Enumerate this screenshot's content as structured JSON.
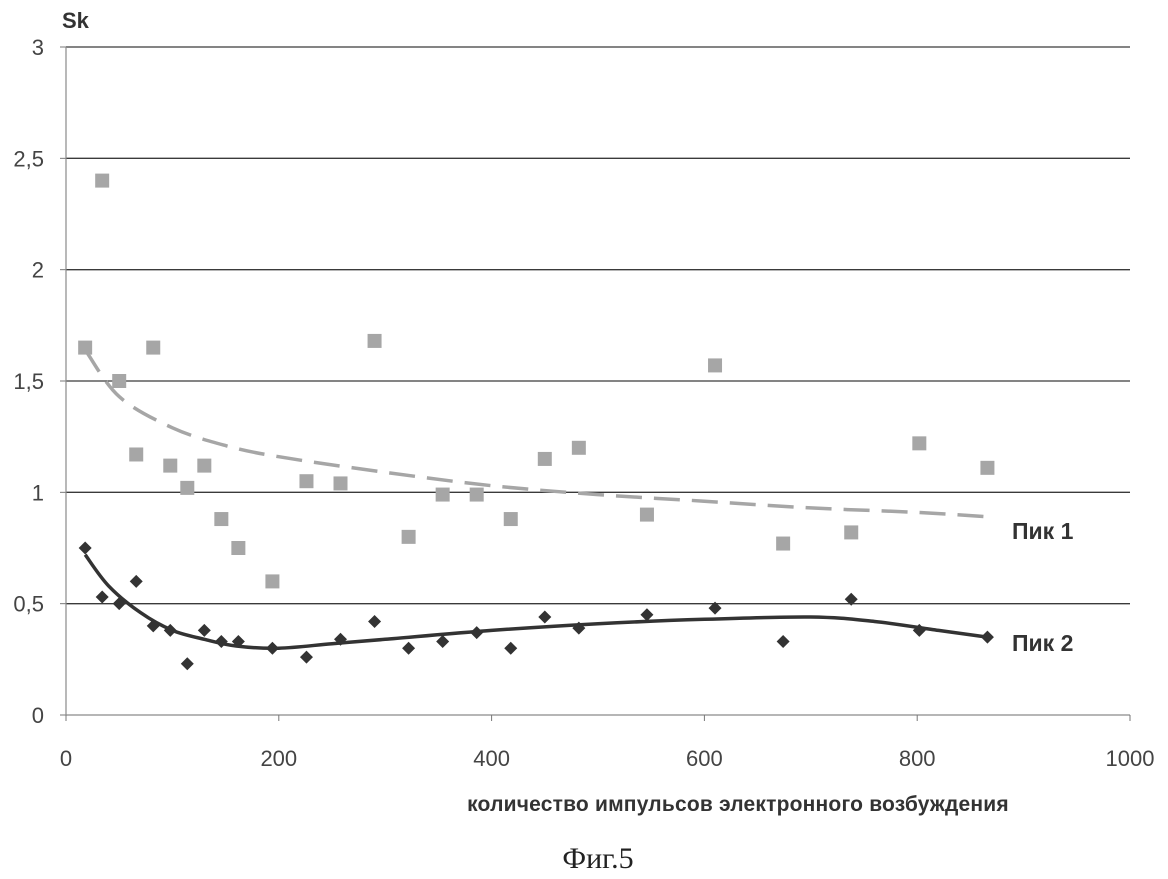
{
  "chart_data": {
    "type": "scatter",
    "ylabel": "Sk",
    "xlabel": "количество импульсов электронного возбуждения",
    "caption": "Фиг.5",
    "xlim": [
      0,
      1000
    ],
    "ylim": [
      0,
      3
    ],
    "x_ticks": [
      "0",
      "200",
      "400",
      "600",
      "800",
      "1000"
    ],
    "y_ticks": [
      "0",
      "0,5",
      "1",
      "1,5",
      "2",
      "2,5",
      "3"
    ],
    "grid": "horizontal",
    "series": [
      {
        "name": "Пик 1",
        "marker": "square",
        "color": "#a6a6a6",
        "trendline": "dashed",
        "trend_color": "#a6a6a6",
        "points": [
          [
            18,
            1.65
          ],
          [
            34,
            2.4
          ],
          [
            50,
            1.5
          ],
          [
            66,
            1.17
          ],
          [
            82,
            1.65
          ],
          [
            98,
            1.12
          ],
          [
            114,
            1.02
          ],
          [
            130,
            1.12
          ],
          [
            146,
            0.88
          ],
          [
            162,
            0.75
          ],
          [
            194,
            0.6
          ],
          [
            226,
            1.05
          ],
          [
            258,
            1.04
          ],
          [
            290,
            1.68
          ],
          [
            322,
            0.8
          ],
          [
            354,
            0.99
          ],
          [
            386,
            0.99
          ],
          [
            418,
            0.88
          ],
          [
            450,
            1.15
          ],
          [
            482,
            1.2
          ],
          [
            546,
            0.9
          ],
          [
            610,
            1.57
          ],
          [
            674,
            0.77
          ],
          [
            738,
            0.82
          ],
          [
            802,
            1.22
          ],
          [
            866,
            1.11
          ]
        ],
        "trend_points": [
          [
            18,
            1.64
          ],
          [
            50,
            1.43
          ],
          [
            100,
            1.29
          ],
          [
            150,
            1.21
          ],
          [
            200,
            1.16
          ],
          [
            300,
            1.09
          ],
          [
            400,
            1.03
          ],
          [
            500,
            0.99
          ],
          [
            600,
            0.96
          ],
          [
            700,
            0.93
          ],
          [
            800,
            0.91
          ],
          [
            866,
            0.89
          ]
        ]
      },
      {
        "name": "Пик 2",
        "marker": "diamond",
        "color": "#333333",
        "trendline": "solid",
        "trend_color": "#333333",
        "points": [
          [
            18,
            0.75
          ],
          [
            34,
            0.53
          ],
          [
            50,
            0.5
          ],
          [
            66,
            0.6
          ],
          [
            82,
            0.4
          ],
          [
            98,
            0.38
          ],
          [
            114,
            0.23
          ],
          [
            130,
            0.38
          ],
          [
            146,
            0.33
          ],
          [
            162,
            0.33
          ],
          [
            194,
            0.3
          ],
          [
            226,
            0.26
          ],
          [
            258,
            0.34
          ],
          [
            290,
            0.42
          ],
          [
            322,
            0.3
          ],
          [
            354,
            0.33
          ],
          [
            386,
            0.37
          ],
          [
            418,
            0.3
          ],
          [
            450,
            0.44
          ],
          [
            482,
            0.39
          ],
          [
            546,
            0.45
          ],
          [
            610,
            0.48
          ],
          [
            674,
            0.33
          ],
          [
            738,
            0.52
          ],
          [
            802,
            0.38
          ],
          [
            866,
            0.35
          ]
        ],
        "trend_points": [
          [
            18,
            0.72
          ],
          [
            40,
            0.58
          ],
          [
            70,
            0.46
          ],
          [
            100,
            0.38
          ],
          [
            130,
            0.34
          ],
          [
            160,
            0.31
          ],
          [
            200,
            0.3
          ],
          [
            250,
            0.32
          ],
          [
            300,
            0.34
          ],
          [
            400,
            0.38
          ],
          [
            500,
            0.41
          ],
          [
            600,
            0.43
          ],
          [
            700,
            0.44
          ],
          [
            760,
            0.42
          ],
          [
            820,
            0.38
          ],
          [
            866,
            0.35
          ]
        ]
      }
    ]
  }
}
